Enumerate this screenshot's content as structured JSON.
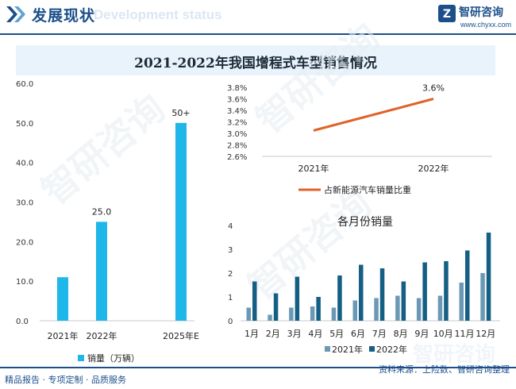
{
  "header": {
    "title": "发展现状",
    "ghost_text": "Development status",
    "logo_text": "智研咨询",
    "logo_url": "www.chyxx.com"
  },
  "main_title": "2021-2022年我国增程式车型销售情况",
  "colors": {
    "bar_main": "#1fb6ea",
    "line": "#e0622a",
    "bar_2021": "#6b99b5",
    "bar_2022": "#145f83",
    "brand": "#1c4f8a",
    "watermark": "#e6edf3"
  },
  "chart_data": [
    {
      "type": "bar",
      "categories": [
        "2021年",
        "2022年",
        "2025年E"
      ],
      "series": [
        {
          "name": "销量（万辆）",
          "values": [
            11,
            25,
            50
          ]
        }
      ],
      "data_labels": [
        "",
        "25.0",
        "50+"
      ],
      "y_ticks": [
        "0.0",
        "10.0",
        "20.0",
        "30.0",
        "40.0",
        "50.0",
        "60.0"
      ],
      "ylim": [
        0,
        60
      ],
      "legend_position": "bottom-left"
    },
    {
      "type": "line",
      "categories": [
        "2021年",
        "2022年"
      ],
      "series": [
        {
          "name": "占新能源汽车销量比重",
          "values": [
            3.05,
            3.6
          ]
        }
      ],
      "data_labels": [
        "",
        "3.6%"
      ],
      "y_ticks": [
        "2.6%",
        "2.8%",
        "3.0%",
        "3.2%",
        "3.4%",
        "3.6%",
        "3.8%"
      ],
      "ylim": [
        2.6,
        3.8
      ],
      "legend_position": "bottom"
    },
    {
      "type": "bar",
      "title": "各月份销量",
      "categories": [
        "1月",
        "2月",
        "3月",
        "4月",
        "5月",
        "6月",
        "7月",
        "8月",
        "9月",
        "10月",
        "11月",
        "12月"
      ],
      "series": [
        {
          "name": "2021年",
          "values": [
            0.55,
            0.25,
            0.55,
            0.6,
            0.55,
            0.85,
            0.95,
            1.05,
            0.95,
            1.05,
            1.6,
            2.0
          ]
        },
        {
          "name": "2022年",
          "values": [
            1.65,
            1.15,
            1.85,
            1.0,
            1.9,
            2.35,
            2.2,
            1.65,
            2.45,
            2.5,
            2.95,
            3.7
          ]
        }
      ],
      "y_ticks": [
        "0",
        "1",
        "2",
        "3",
        "4"
      ],
      "ylim": [
        0,
        4
      ],
      "legend_position": "bottom"
    }
  ],
  "footer": {
    "left": "精品报告 · 专项定制 · 品质服务",
    "right": "资料来源：上险数、智研咨询整理"
  }
}
